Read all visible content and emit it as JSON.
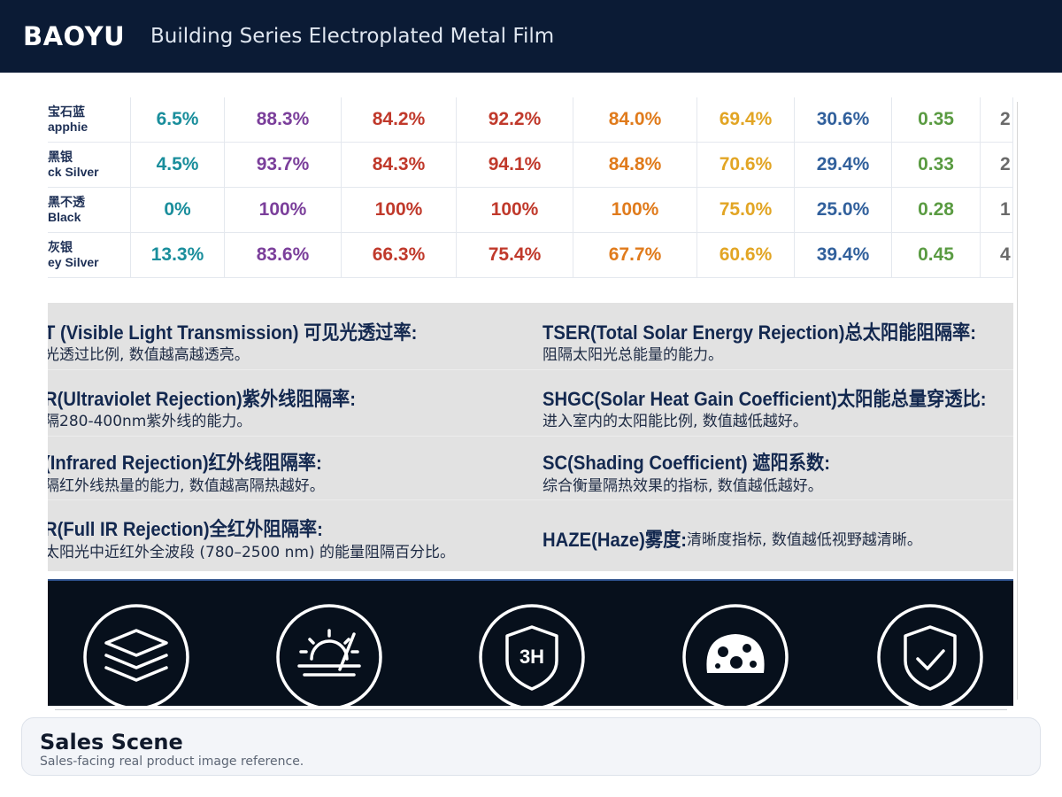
{
  "header": {
    "brand": "BAOYU",
    "title": "Building Series Electroplated Metal Film"
  },
  "table": {
    "rows": [
      {
        "label": [
          "宝石蓝",
          "apphie"
        ],
        "cells": [
          "6.5%",
          "88.3%",
          "84.2%",
          "92.2%",
          "84.0%",
          "69.4%",
          "30.6%",
          "0.35",
          "2"
        ]
      },
      {
        "label": [
          "黑银",
          "ck Silver"
        ],
        "cells": [
          "4.5%",
          "93.7%",
          "84.3%",
          "94.1%",
          "84.8%",
          "70.6%",
          "29.4%",
          "0.33",
          "2"
        ]
      },
      {
        "label": [
          "黑不透",
          "Black"
        ],
        "cells": [
          "0%",
          "100%",
          "100%",
          "100%",
          "100%",
          "75.0%",
          "25.0%",
          "0.28",
          "1"
        ]
      },
      {
        "label": [
          "灰银",
          "ey Silver"
        ],
        "cells": [
          "13.3%",
          "83.6%",
          "66.3%",
          "75.4%",
          "67.7%",
          "60.6%",
          "39.4%",
          "0.45",
          "4"
        ]
      }
    ]
  },
  "definitions": {
    "items": [
      {
        "heading": "T (Visible Light Transmission) 可见光透过率:",
        "text": "光透过比例, 数值越高越透亮。"
      },
      {
        "heading": "TSER(Total Solar Energy Rejection)总太阳能阻隔率:",
        "text": "阻隔太阳光总能量的能力。"
      },
      {
        "heading": "R(Ultraviolet Rejection)紫外线阻隔率:",
        "text": "隔280-400nm紫外线的能力。"
      },
      {
        "heading": "SHGC(Solar Heat Gain Coefficient)太阳能总量穿透比:",
        "text": "进入室内的太阳能比例, 数值越低越好。"
      },
      {
        "heading": "(Infrared Rejection)红外线阻隔率:",
        "text": "隔红外线热量的能力, 数值越高隔热越好。"
      },
      {
        "heading": "SC(Shading Coefficient) 遮阳系数:",
        "text": "综合衡量隔热效果的指标, 数值越低越好。"
      },
      {
        "heading": "R(Full IR Rejection)全红外阻隔率:",
        "text": "太阳光中近红外全波段 (780–2500 nm) 的能量阻隔百分比。"
      },
      {
        "heading": "HAZE(Haze)雾度:",
        "text": "清晰度指标, 数值越低视野越清晰。"
      }
    ]
  },
  "icons": {
    "shield_label": "3H"
  },
  "card": {
    "title": "Sales Scene",
    "subtitle": "Sales-facing real product image reference."
  }
}
